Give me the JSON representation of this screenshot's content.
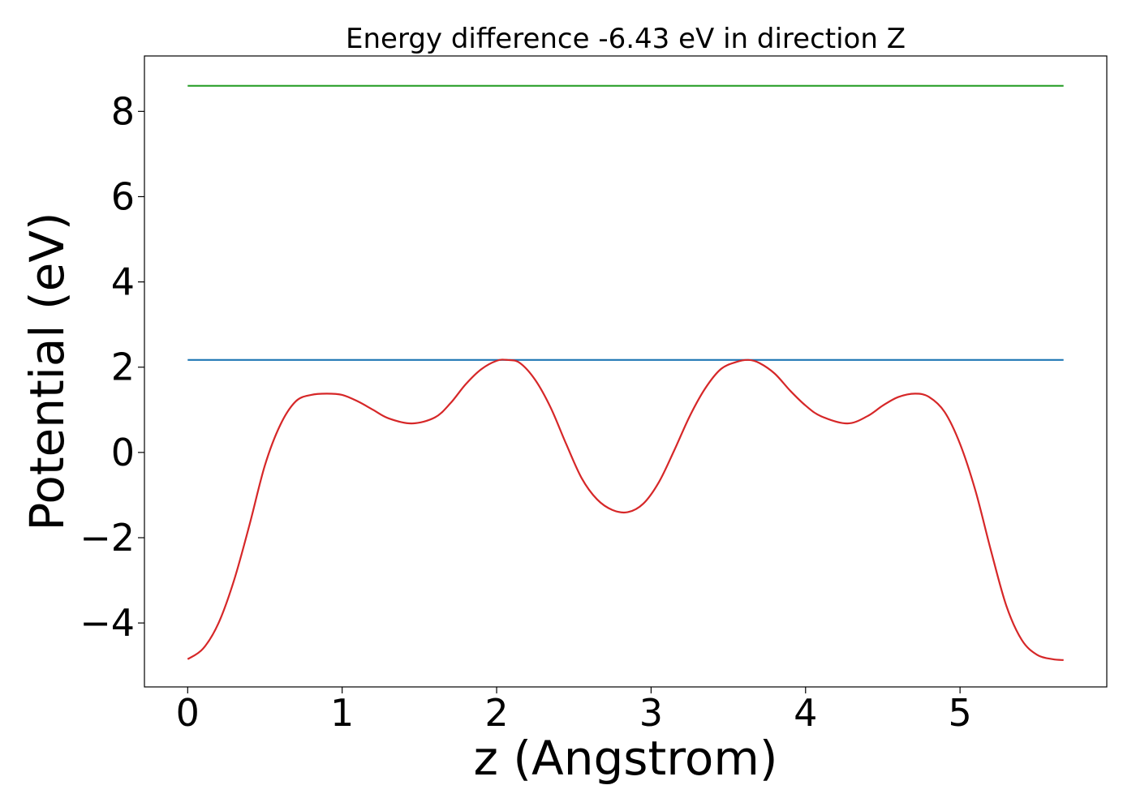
{
  "chart_data": {
    "type": "line",
    "title": "Energy difference -6.43 eV in direction Z",
    "xlabel": "z (Angstrom)",
    "ylabel": "Potential (eV)",
    "xlim": [
      -0.28,
      5.95
    ],
    "ylim": [
      -5.5,
      9.3
    ],
    "x_ticks": [
      {
        "value": 0,
        "label": "0"
      },
      {
        "value": 1,
        "label": "1"
      },
      {
        "value": 2,
        "label": "2"
      },
      {
        "value": 3,
        "label": "3"
      },
      {
        "value": 4,
        "label": "4"
      },
      {
        "value": 5,
        "label": "5"
      }
    ],
    "y_ticks": [
      {
        "value": -4,
        "label": "−4"
      },
      {
        "value": -2,
        "label": "−2"
      },
      {
        "value": 0,
        "label": "0"
      },
      {
        "value": 2,
        "label": "2"
      },
      {
        "value": 4,
        "label": "4"
      },
      {
        "value": 6,
        "label": "6"
      },
      {
        "value": 8,
        "label": "8"
      }
    ],
    "grid": false,
    "series": [
      {
        "color": "#d62728",
        "x": [
          0.0,
          0.1,
          0.2,
          0.3,
          0.4,
          0.5,
          0.6,
          0.7,
          0.8,
          0.9,
          1.0,
          1.1,
          1.2,
          1.3,
          1.45,
          1.6,
          1.7,
          1.8,
          1.9,
          2.0,
          2.07,
          2.15,
          2.25,
          2.35,
          2.45,
          2.55,
          2.65,
          2.75,
          2.85,
          2.95,
          3.05,
          3.15,
          3.25,
          3.35,
          3.45,
          3.55,
          3.63,
          3.7,
          3.8,
          3.9,
          4.0,
          4.1,
          4.27,
          4.4,
          4.5,
          4.6,
          4.71,
          4.8,
          4.9,
          5.0,
          5.1,
          5.2,
          5.3,
          5.4,
          5.5,
          5.6,
          5.67
        ],
        "y": [
          -4.85,
          -4.6,
          -4.0,
          -3.0,
          -1.7,
          -0.3,
          0.65,
          1.2,
          1.35,
          1.38,
          1.35,
          1.2,
          1.0,
          0.8,
          0.68,
          0.82,
          1.15,
          1.6,
          1.95,
          2.15,
          2.17,
          2.1,
          1.7,
          1.05,
          0.2,
          -0.6,
          -1.1,
          -1.35,
          -1.4,
          -1.2,
          -0.7,
          0.05,
          0.85,
          1.5,
          1.95,
          2.12,
          2.17,
          2.1,
          1.85,
          1.45,
          1.1,
          0.85,
          0.68,
          0.85,
          1.1,
          1.3,
          1.38,
          1.3,
          0.95,
          0.2,
          -0.9,
          -2.3,
          -3.6,
          -4.4,
          -4.75,
          -4.85,
          -4.87
        ]
      },
      {
        "color": "#1f77b4",
        "x": [
          0.0,
          5.67
        ],
        "y": [
          2.17,
          2.17
        ]
      },
      {
        "color": "#2ca02c",
        "x": [
          0.0,
          5.67
        ],
        "y": [
          8.6,
          8.6
        ]
      }
    ]
  }
}
